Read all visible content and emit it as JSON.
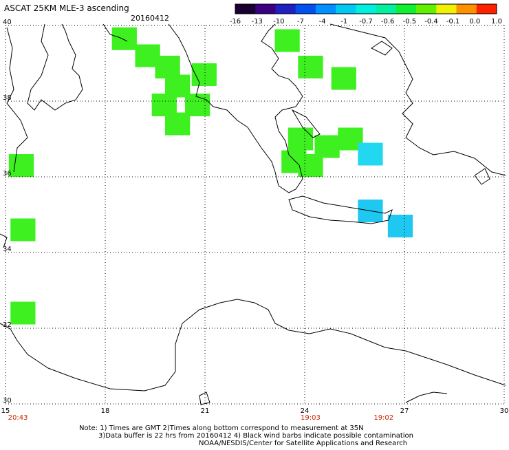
{
  "header": {
    "product": "ASCAT 25KM MLE-3 ascending",
    "date": "20160412"
  },
  "colorbar": {
    "labels": [
      "-16",
      "-13",
      "-10",
      "-7",
      "-4",
      "-1",
      "-0.7",
      "-0.6",
      "-0.5",
      "-0.4",
      "-0.1",
      "0.0",
      "1.0"
    ],
    "colors": [
      "#1a0030",
      "#3a0080",
      "#2020c0",
      "#0050f0",
      "#0090ff",
      "#00c8f0",
      "#00f0e0",
      "#00f0a0",
      "#10f030",
      "#60f000",
      "#f0f000",
      "#ff9000",
      "#ff2000"
    ]
  },
  "map": {
    "lon_range": [
      15,
      30
    ],
    "lat_range": [
      30,
      40
    ],
    "lon_ticks": [
      "15",
      "18",
      "21",
      "24",
      "27",
      "30"
    ],
    "lat_ticks": [
      "40",
      "38",
      "36",
      "34",
      "32",
      "30"
    ],
    "grid": true,
    "pass_times": [
      "20:43",
      "19:03",
      "19:02"
    ],
    "time_color": "#cc2200",
    "land_outline_color": "#000000"
  },
  "swaths": [
    {
      "name": "ionian-north",
      "color": "#3ef020",
      "cells": [
        [
          18.2,
          39.95
        ],
        [
          18.9,
          39.5
        ],
        [
          19.5,
          39.2
        ],
        [
          20.6,
          39.0
        ],
        [
          19.8,
          38.7
        ],
        [
          19.4,
          38.2
        ],
        [
          20.4,
          38.2
        ],
        [
          19.8,
          37.7
        ]
      ]
    },
    {
      "name": "aegean-north",
      "color": "#3ef020",
      "cells": [
        [
          23.1,
          39.9
        ],
        [
          23.8,
          39.2
        ],
        [
          24.8,
          38.9
        ],
        [
          23.5,
          37.3
        ],
        [
          24.3,
          37.1
        ],
        [
          25.0,
          37.3
        ],
        [
          23.3,
          36.7
        ],
        [
          23.8,
          36.6
        ]
      ]
    },
    {
      "name": "aegean-east",
      "color": "#22d8f0",
      "cells": [
        [
          25.6,
          36.9
        ]
      ]
    },
    {
      "name": "crete-south",
      "color": "#1ec8f0",
      "cells": [
        [
          25.6,
          35.4
        ],
        [
          26.5,
          35.0
        ]
      ]
    },
    {
      "name": "west-edge",
      "color": "#3ef020",
      "cells": [
        [
          15.1,
          36.6
        ],
        [
          15.15,
          34.9
        ],
        [
          15.15,
          32.7
        ]
      ]
    }
  ],
  "footer": {
    "line1": "Note: 1) Times are GMT 2)Times along bottom correspond to measurement at 35N",
    "line2": "3)Data buffer is 22 hrs from 20160412 4) Black wind barbs indicate possible contamination",
    "line3": "NOAA/NESDIS/Center for Satellite Applications and Research"
  }
}
